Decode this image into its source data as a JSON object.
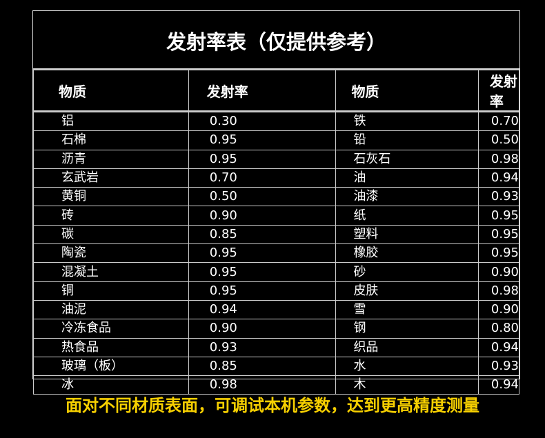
{
  "title": "发射率表（仅提供参考）",
  "headers": [
    "物质",
    "发射率",
    "物质",
    "发射率"
  ],
  "rows": [
    [
      "铝",
      "0.30",
      "铁",
      "0.70"
    ],
    [
      "石棉",
      "0.95",
      "铅",
      "0.50"
    ],
    [
      "沥青",
      "0.95",
      "石灰石",
      "0.98"
    ],
    [
      "玄武岩",
      "0.70",
      "油",
      "0.94"
    ],
    [
      "黄铜",
      "0.50",
      "油漆",
      "0.93"
    ],
    [
      "砖",
      "0.90",
      "纸",
      "0.95"
    ],
    [
      "碳",
      "0.85",
      "塑料",
      "0.95"
    ],
    [
      "陶瓷",
      "0.95",
      "橡胶",
      "0.95"
    ],
    [
      "混凝土",
      "0.95",
      "砂",
      "0.90"
    ],
    [
      "铜",
      "0.95",
      "皮肤",
      "0.98"
    ],
    [
      "油泥",
      "0.94",
      "雪",
      "0.90"
    ],
    [
      "冷冻食品",
      "0.90",
      "钢",
      "0.80"
    ],
    [
      "热食品",
      "0.93",
      "织品",
      "0.94"
    ],
    [
      "玻璃（板）",
      "0.85",
      "水",
      "0.93"
    ],
    [
      "冰",
      "0.98",
      "木",
      "0.94"
    ]
  ],
  "footer": "面对不同材质表面，可调试本机参数，达到更高精度测量",
  "colors": {
    "background": "#000000",
    "text": "#ffffff",
    "footer": "#f7d000",
    "grid": "#cccccc"
  }
}
